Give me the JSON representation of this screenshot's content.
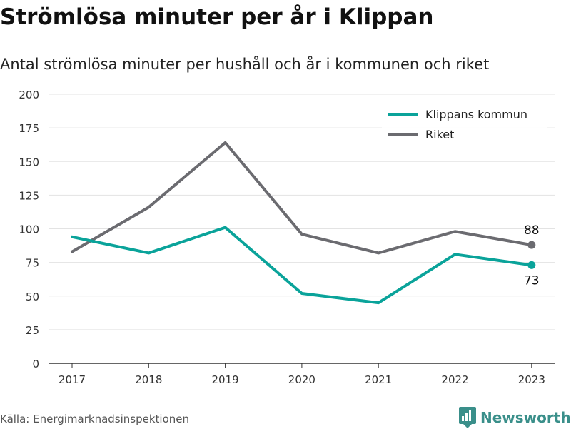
{
  "chart_data": {
    "type": "line",
    "title": "Strömlösa minuter per år i Klippan",
    "subtitle": "Antal strömlösa minuter per hushåll och år i kommunen och riket",
    "x": [
      "2017",
      "2018",
      "2019",
      "2020",
      "2021",
      "2022",
      "2023"
    ],
    "yticks": [
      "0",
      "25",
      "50",
      "75",
      "100",
      "125",
      "150",
      "175",
      "200"
    ],
    "ylim": [
      0,
      200
    ],
    "grid": true,
    "legend_position": "top-right",
    "series": [
      {
        "name": "Klippans kommun",
        "color": "#0aa39a",
        "values": [
          94,
          82,
          101,
          52,
          45,
          81,
          73
        ],
        "end_label": "73"
      },
      {
        "name": "Riket",
        "color": "#6b6b70",
        "values": [
          83,
          116,
          164,
          96,
          82,
          98,
          88
        ],
        "end_label": "88"
      }
    ]
  },
  "footer": {
    "source": "Källa: Energimarknadsinspektionen",
    "brand": "Newsworthy",
    "brand_icon": "newsworthy-logo-icon"
  }
}
